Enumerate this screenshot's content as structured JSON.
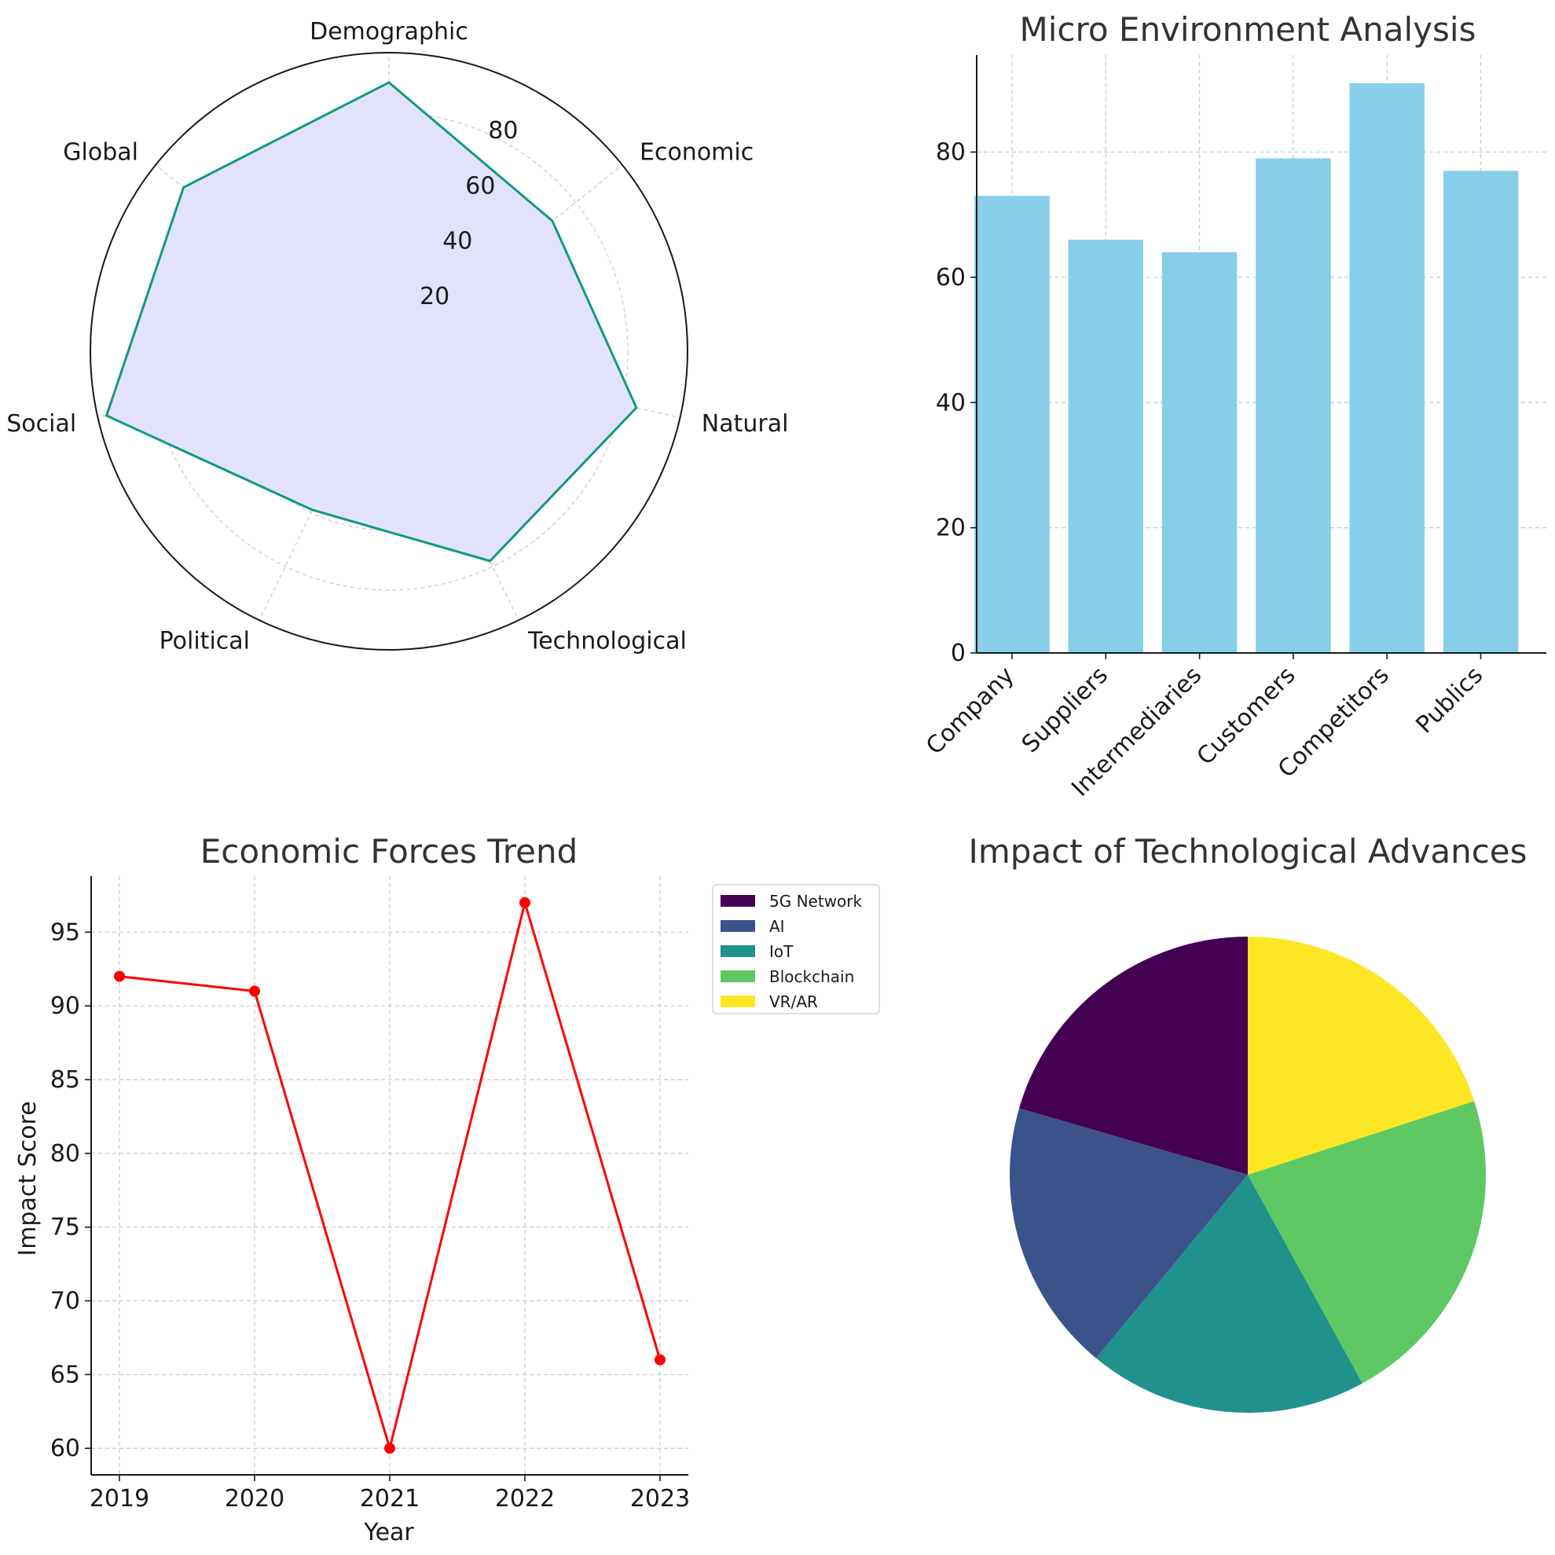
{
  "chart_data": [
    {
      "type": "radar",
      "title": "",
      "categories": [
        "Demographic",
        "Economic",
        "Natural",
        "Technological",
        "Political",
        "Social",
        "Global"
      ],
      "values": [
        90,
        70,
        85,
        78,
        59,
        97,
        88
      ],
      "rticks": [
        20,
        40,
        60,
        80
      ],
      "rlim": [
        0,
        100
      ],
      "grid": true,
      "line_color": "#119a80",
      "fill_color": "#e2e3fb"
    },
    {
      "type": "bar",
      "title": "Micro Environment Analysis",
      "categories": [
        "Company",
        "Suppliers",
        "Intermediaries",
        "Customers",
        "Competitors",
        "Publics"
      ],
      "values": [
        73,
        66,
        64,
        79,
        91,
        77
      ],
      "xlabel": "",
      "ylabel": "",
      "yticks": [
        0,
        20,
        40,
        60,
        80
      ],
      "ylim": [
        0,
        95.5
      ],
      "grid": true,
      "bar_color": "#87ceeb"
    },
    {
      "type": "line",
      "title": "Economic Forces Trend",
      "x": [
        "2019",
        "2020",
        "2021",
        "2022",
        "2023"
      ],
      "values": [
        92,
        91,
        60,
        97,
        66
      ],
      "xlabel": "Year",
      "ylabel": "Impact Score",
      "yticks": [
        60,
        65,
        70,
        75,
        80,
        85,
        90,
        95
      ],
      "ylim": [
        58.2,
        98.8
      ],
      "grid": true,
      "line_color": "#ff0000"
    },
    {
      "type": "pie",
      "title": "Impact of Technological Advances",
      "labels": [
        "5G Network",
        "AI",
        "IoT",
        "Blockchain",
        "VR/AR"
      ],
      "values": [
        20.5,
        18.5,
        19,
        22,
        20
      ],
      "colors": [
        "#440154",
        "#3b528b",
        "#21918c",
        "#5ec962",
        "#fde725"
      ],
      "start_angle": 90,
      "legend": "top-right, outside left"
    }
  ]
}
